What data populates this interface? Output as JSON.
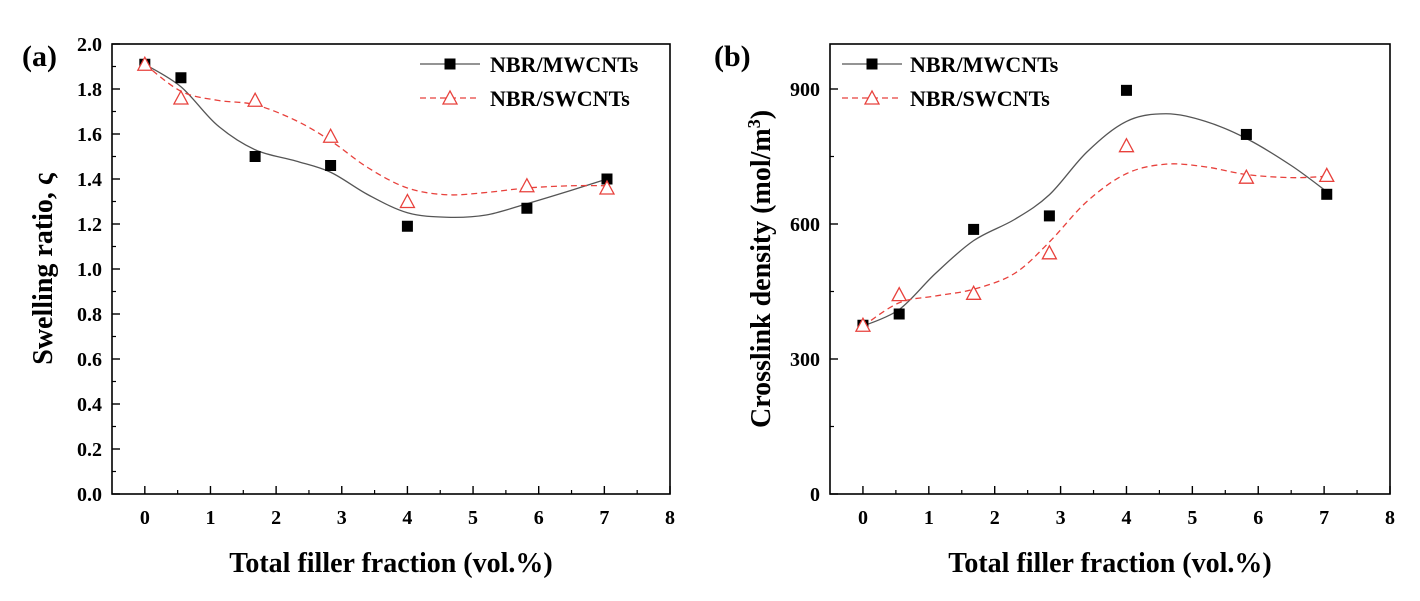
{
  "chart_data": [
    {
      "type": "scatter",
      "panel_label": "(a)",
      "xlabel": "Total filler fraction (vol.%)",
      "ylabel": "Swelling ratio, ς",
      "xlim": [
        -0.5,
        8
      ],
      "ylim": [
        0,
        2.0
      ],
      "x_ticks": [
        0,
        1,
        2,
        3,
        4,
        5,
        6,
        7,
        8
      ],
      "y_ticks": [
        0.0,
        0.2,
        0.4,
        0.6,
        0.8,
        1.0,
        1.2,
        1.4,
        1.6,
        1.8,
        2.0
      ],
      "y_tick_decimals": 1,
      "legend_position": "top-right",
      "series": [
        {
          "name": "NBR/MWCNTs",
          "marker": "square-filled",
          "color": "#000000",
          "line_style": "solid",
          "x": [
            0,
            0.55,
            1.68,
            2.83,
            4.0,
            5.82,
            7.04
          ],
          "y": [
            1.91,
            1.85,
            1.5,
            1.46,
            1.19,
            1.27,
            1.4
          ],
          "curve": [
            [
              0,
              1.91
            ],
            [
              0.55,
              1.81
            ],
            [
              1.1,
              1.64
            ],
            [
              1.68,
              1.53
            ],
            [
              2.3,
              1.48
            ],
            [
              2.83,
              1.43
            ],
            [
              3.4,
              1.33
            ],
            [
              4.0,
              1.25
            ],
            [
              4.6,
              1.23
            ],
            [
              5.2,
              1.24
            ],
            [
              5.82,
              1.29
            ],
            [
              6.5,
              1.35
            ],
            [
              7.04,
              1.4
            ]
          ]
        },
        {
          "name": "NBR/SWCNTs",
          "marker": "triangle-open",
          "color": "#e8413c",
          "line_style": "dashed",
          "x": [
            0,
            0.55,
            1.68,
            2.83,
            4.0,
            5.82,
            7.04
          ],
          "y": [
            1.91,
            1.76,
            1.75,
            1.59,
            1.3,
            1.37,
            1.36
          ],
          "curve": [
            [
              0,
              1.91
            ],
            [
              0.55,
              1.79
            ],
            [
              1.1,
              1.75
            ],
            [
              1.68,
              1.73
            ],
            [
              2.3,
              1.66
            ],
            [
              2.83,
              1.57
            ],
            [
              3.4,
              1.45
            ],
            [
              4.0,
              1.36
            ],
            [
              4.6,
              1.33
            ],
            [
              5.2,
              1.34
            ],
            [
              5.82,
              1.36
            ],
            [
              6.5,
              1.37
            ],
            [
              7.04,
              1.37
            ]
          ]
        }
      ]
    },
    {
      "type": "scatter",
      "panel_label": "(b)",
      "xlabel": "Total filler fraction (vol.%)",
      "ylabel": "Crosslink density (mol/m",
      "ylabel_superscript": "3",
      "ylabel_suffix": ")",
      "xlim": [
        -0.5,
        8
      ],
      "ylim": [
        0,
        1000
      ],
      "x_ticks": [
        0,
        1,
        2,
        3,
        4,
        5,
        6,
        7,
        8
      ],
      "y_ticks": [
        0,
        300,
        600,
        900
      ],
      "y_tick_decimals": 0,
      "legend_position": "top-left",
      "series": [
        {
          "name": "NBR/MWCNTs",
          "marker": "square-filled",
          "color": "#000000",
          "line_style": "solid",
          "x": [
            0,
            0.55,
            1.68,
            2.83,
            4.0,
            5.82,
            7.04
          ],
          "y": [
            375,
            400,
            588,
            618,
            897,
            799,
            666
          ],
          "curve": [
            [
              0,
              373
            ],
            [
              0.55,
              410
            ],
            [
              1.1,
              490
            ],
            [
              1.68,
              563
            ],
            [
              2.3,
              610
            ],
            [
              2.83,
              665
            ],
            [
              3.4,
              760
            ],
            [
              4.0,
              828
            ],
            [
              4.6,
              845
            ],
            [
              5.2,
              828
            ],
            [
              5.82,
              790
            ],
            [
              6.5,
              730
            ],
            [
              7.04,
              672
            ]
          ]
        },
        {
          "name": "NBR/SWCNTs",
          "marker": "triangle-open",
          "color": "#e8413c",
          "line_style": "dashed",
          "x": [
            0,
            0.55,
            1.68,
            2.83,
            4.0,
            5.82,
            7.04
          ],
          "y": [
            375,
            443,
            446,
            536,
            774,
            704,
            708
          ],
          "curve": [
            [
              0,
              373
            ],
            [
              0.55,
              425
            ],
            [
              1.1,
              440
            ],
            [
              1.68,
              455
            ],
            [
              2.3,
              490
            ],
            [
              2.83,
              560
            ],
            [
              3.4,
              650
            ],
            [
              4.0,
              712
            ],
            [
              4.6,
              733
            ],
            [
              5.2,
              727
            ],
            [
              5.82,
              710
            ],
            [
              6.5,
              703
            ],
            [
              7.04,
              706
            ]
          ]
        }
      ]
    }
  ]
}
